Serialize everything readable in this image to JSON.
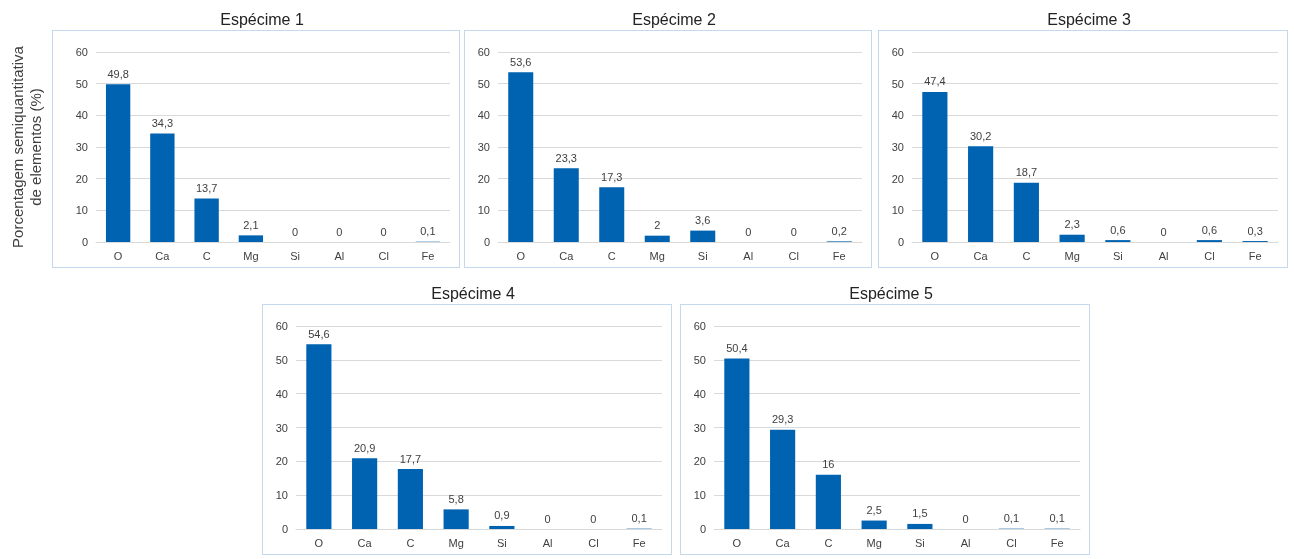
{
  "chart_data": [
    {
      "type": "bar",
      "title": "Espécime 1",
      "ylabel": "Porcentagem semiquantitativa de elementos (%)",
      "categories": [
        "O",
        "Ca",
        "C",
        "Mg",
        "Si",
        "Al",
        "Cl",
        "Fe"
      ],
      "values": [
        49.8,
        34.3,
        13.7,
        2.1,
        0,
        0,
        0,
        0.1
      ],
      "value_labels": [
        "49,8",
        "34,3",
        "13,7",
        "2,1",
        "0",
        "0",
        "0",
        "0,1"
      ],
      "color": "#0063b1",
      "ylim": [
        0,
        60
      ],
      "yticks": [
        0,
        10,
        20,
        30,
        40,
        50,
        60
      ],
      "grid": "y"
    },
    {
      "type": "bar",
      "title": "Espécime 2",
      "categories": [
        "O",
        "Ca",
        "C",
        "Mg",
        "Si",
        "Al",
        "Cl",
        "Fe"
      ],
      "values": [
        53.6,
        23.3,
        17.3,
        2,
        3.6,
        0,
        0,
        0.2
      ],
      "value_labels": [
        "53,6",
        "23,3",
        "17,3",
        "2",
        "3,6",
        "0",
        "0",
        "0,2"
      ],
      "color": "#0063b1",
      "ylim": [
        0,
        60
      ],
      "yticks": [
        0,
        10,
        20,
        30,
        40,
        50,
        60
      ],
      "grid": "y"
    },
    {
      "type": "bar",
      "title": "Espécime 3",
      "categories": [
        "O",
        "Ca",
        "C",
        "Mg",
        "Si",
        "Al",
        "Cl",
        "Fe"
      ],
      "values": [
        47.4,
        30.2,
        18.7,
        2.3,
        0.6,
        0,
        0.6,
        0.3
      ],
      "value_labels": [
        "47,4",
        "30,2",
        "18,7",
        "2,3",
        "0,6",
        "0",
        "0,6",
        "0,3"
      ],
      "color": "#0063b1",
      "ylim": [
        0,
        60
      ],
      "yticks": [
        0,
        10,
        20,
        30,
        40,
        50,
        60
      ],
      "grid": "y"
    },
    {
      "type": "bar",
      "title": "Espécime 4",
      "categories": [
        "O",
        "Ca",
        "C",
        "Mg",
        "Si",
        "Al",
        "Cl",
        "Fe"
      ],
      "values": [
        54.6,
        20.9,
        17.7,
        5.8,
        0.9,
        0,
        0,
        0.1
      ],
      "value_labels": [
        "54,6",
        "20,9",
        "17,7",
        "5,8",
        "0,9",
        "0",
        "0",
        "0,1"
      ],
      "color": "#0063b1",
      "ylim": [
        0,
        60
      ],
      "yticks": [
        0,
        10,
        20,
        30,
        40,
        50,
        60
      ],
      "grid": "y"
    },
    {
      "type": "bar",
      "title": "Espécime 5",
      "categories": [
        "O",
        "Ca",
        "C",
        "Mg",
        "Si",
        "Al",
        "Cl",
        "Fe"
      ],
      "values": [
        50.4,
        29.3,
        16,
        2.5,
        1.5,
        0,
        0.1,
        0.1
      ],
      "value_labels": [
        "50,4",
        "29,3",
        "16",
        "2,5",
        "1,5",
        "0",
        "0,1",
        "0,1"
      ],
      "color": "#0063b1",
      "ylim": [
        0,
        60
      ],
      "yticks": [
        0,
        10,
        20,
        30,
        40,
        50,
        60
      ],
      "grid": "y"
    }
  ]
}
